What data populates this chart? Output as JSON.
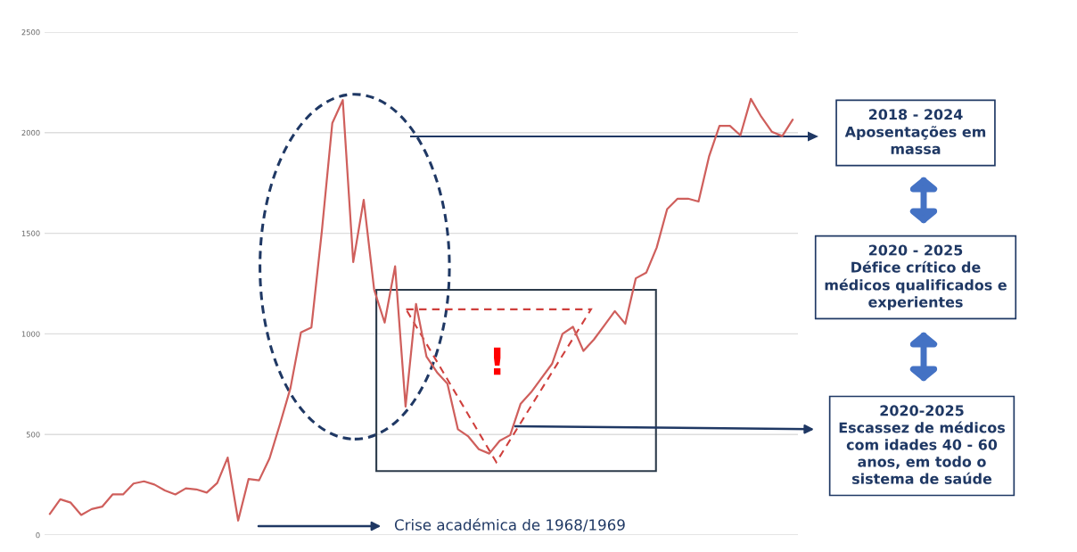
{
  "chart_data": {
    "type": "line",
    "categories": [
      null,
      null,
      null,
      null,
      null,
      null,
      null,
      null,
      null,
      null,
      null,
      null,
      null,
      null,
      null,
      null,
      null,
      null,
      null,
      null,
      null,
      null,
      null,
      null,
      null,
      null,
      null,
      null,
      null,
      null,
      null,
      null,
      null,
      null,
      null,
      null,
      null,
      null,
      null,
      null,
      null,
      null,
      null,
      null,
      null,
      null,
      null,
      null,
      null,
      null,
      null,
      null,
      null,
      null,
      null,
      null,
      null,
      null,
      null,
      null,
      null,
      null,
      null,
      null,
      null,
      null,
      null,
      null,
      null,
      null,
      null,
      null
    ],
    "series": [
      {
        "color": "#cf5f5c",
        "values": [
          105,
          178,
          161,
          100,
          129,
          141,
          202,
          202,
          256,
          267,
          251,
          222,
          202,
          232,
          227,
          211,
          259,
          385,
          72,
          279,
          272,
          381,
          552,
          731,
          1007,
          1032,
          1511,
          2048,
          2162,
          1357,
          1666,
          1219,
          1056,
          1336,
          639,
          1149,
          887,
          809,
          752,
          526,
          490,
          427,
          405,
          469,
          497,
          653,
          710,
          781,
          851,
          1000,
          1035,
          915,
          972,
          1042,
          1113,
          1050,
          1276,
          1304,
          1429,
          1620,
          1672,
          1672,
          1658,
          1881,
          2034,
          2034,
          1987,
          2168,
          2079,
          2005,
          1983,
          2065
        ]
      }
    ],
    "ylim": [
      0,
      2500
    ],
    "yticks": [
      0,
      500,
      1000,
      1500,
      2000,
      2500
    ],
    "grid": "y",
    "tick_labels": "y",
    "annotations": [
      "!",
      "Crise académica de 1968/1969",
      "2018 - 2024\nAposentações em\nmassa",
      "2020 - 2025\nDéfice crítico de\nmédicos qualificados e\nexperientes",
      "2020-2025\nEscassez de médicos\ncom idades 40 - 60\nanos, em todo o\nsistema de saúde"
    ]
  }
}
